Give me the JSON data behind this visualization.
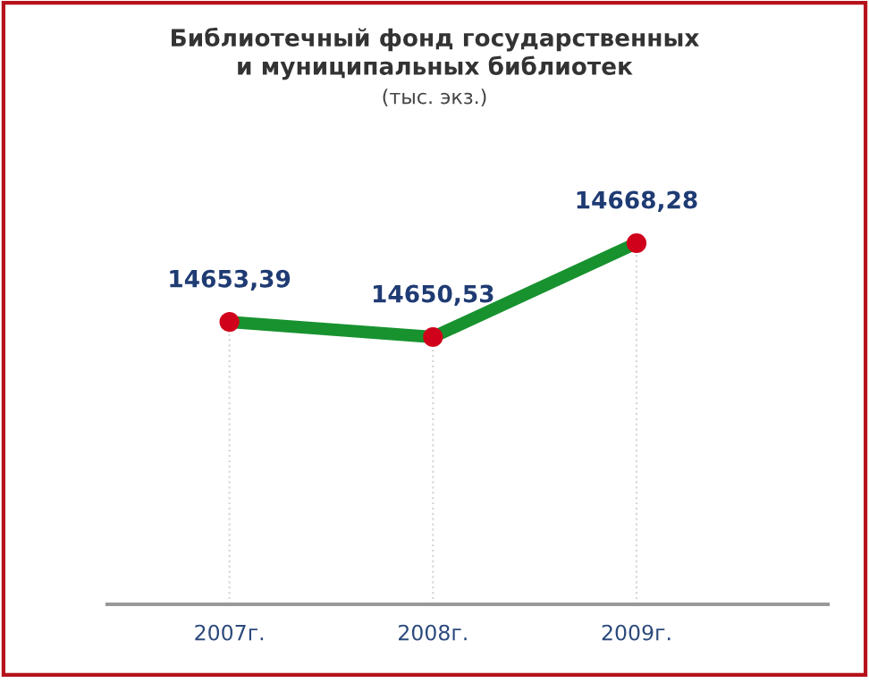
{
  "chart_data": {
    "type": "line",
    "title": "Библиотечный фонд государственных\nи муниципальных библиотек",
    "subtitle": "(тыс. экз.)",
    "categories": [
      "2007г.",
      "2008г.",
      "2009г."
    ],
    "series": [
      {
        "color": "#17922f",
        "values": [
          14653.39,
          14650.53,
          14668.28
        ],
        "value_labels": [
          "14653,39",
          "14650,53",
          "14668,28"
        ]
      }
    ],
    "marker": "circle",
    "line_style": "solid",
    "grid": "x",
    "legend": false
  }
}
